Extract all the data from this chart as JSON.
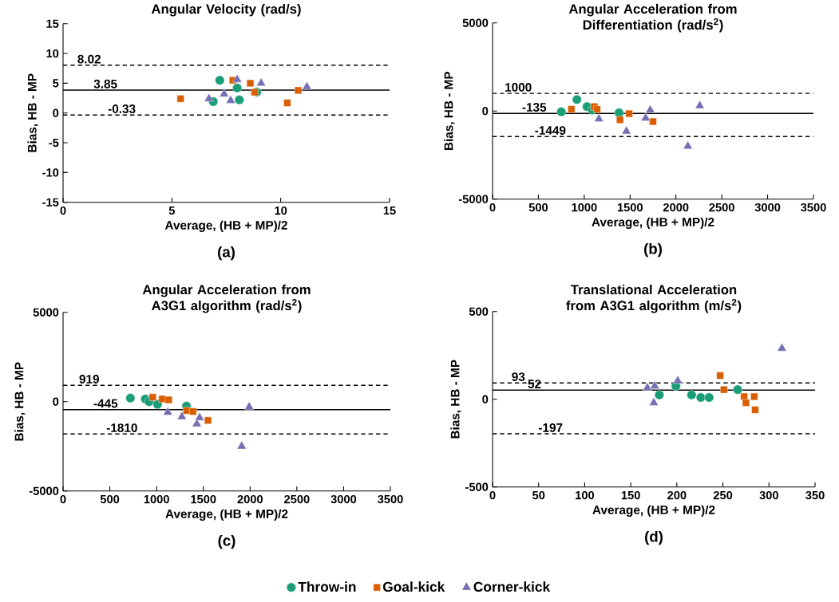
{
  "chart_data": [
    {
      "type": "scatter",
      "title": "Angular Velocity (rad/s)",
      "xlabel": "Average, (HB + MP)/2",
      "ylabel": "Bias, HB - MP",
      "annotations": [
        "(a)"
      ],
      "xlim": [
        0,
        15
      ],
      "ylim": [
        -15,
        15
      ],
      "xticks": [
        0,
        5,
        10,
        15
      ],
      "yticks": [
        -15,
        -10,
        -5,
        0,
        5,
        10,
        15
      ],
      "series": [
        {
          "color": "#1b9e77",
          "marker": "circle",
          "x": [
            7.2,
            6.9,
            8.0,
            8.1,
            8.9
          ],
          "values": [
            5.5,
            1.9,
            4.2,
            2.2,
            3.5
          ]
        },
        {
          "color": "#d95f02",
          "marker": "square",
          "x": [
            5.4,
            7.8,
            8.6,
            8.8,
            10.3,
            10.8
          ],
          "values": [
            2.4,
            5.5,
            5.0,
            3.5,
            1.7,
            3.8
          ]
        },
        {
          "color": "#7570b3",
          "marker": "triangle",
          "x": [
            6.7,
            7.4,
            7.7,
            8.0,
            9.1,
            11.2
          ],
          "values": [
            2.4,
            3.2,
            2.1,
            5.6,
            5.0,
            4.4
          ]
        }
      ],
      "ref_lines": [
        {
          "axis": "y",
          "value": 8.02,
          "label": "8.02",
          "line_style": "dashed",
          "color": "#000000"
        },
        {
          "axis": "y",
          "value": 3.85,
          "label": "3.85",
          "line_style": "solid",
          "color": "#000000"
        },
        {
          "axis": "y",
          "value": -0.33,
          "label": "-0.33",
          "line_style": "dashed",
          "color": "#000000"
        }
      ]
    },
    {
      "type": "scatter",
      "title": "Angular Acceleration from Differentiation (rad/s$^{2}$)",
      "xlabel": "Average, (HB + MP)/2",
      "ylabel": "Bias, HB - MP",
      "annotations": [
        "(b)"
      ],
      "xlim": [
        0,
        3500
      ],
      "ylim": [
        -5000,
        5000
      ],
      "xticks": [
        0,
        500,
        1000,
        1500,
        2000,
        2500,
        3000,
        3500
      ],
      "yticks": [
        -5000,
        0,
        5000
      ],
      "series": [
        {
          "color": "#1b9e77",
          "marker": "circle",
          "x": [
            750,
            920,
            1030,
            1090,
            1380
          ],
          "values": [
            -50,
            650,
            250,
            50,
            -100
          ]
        },
        {
          "color": "#d95f02",
          "marker": "square",
          "x": [
            860,
            1110,
            1140,
            1390,
            1490,
            1750
          ],
          "values": [
            100,
            250,
            100,
            -500,
            -150,
            -600
          ]
        },
        {
          "color": "#7570b3",
          "marker": "triangle",
          "x": [
            1160,
            1460,
            1670,
            1720,
            2130,
            2260
          ],
          "values": [
            -450,
            -1150,
            -400,
            50,
            -2000,
            300
          ]
        }
      ],
      "ref_lines": [
        {
          "axis": "y",
          "value": 1000,
          "label": "1000",
          "line_style": "dashed",
          "color": "#000000"
        },
        {
          "axis": "y",
          "value": -135,
          "label": "-135",
          "line_style": "solid",
          "color": "#000000"
        },
        {
          "axis": "y",
          "value": -1449,
          "label": "-1449",
          "line_style": "dashed",
          "color": "#000000"
        }
      ]
    },
    {
      "type": "scatter",
      "title": "Angular Acceleration from A3G1 algorithm (rad/s$^{2}$)",
      "xlabel": "Average, (HB + MP)/2",
      "ylabel": "Bias, HB - MP",
      "annotations": [
        "(c)"
      ],
      "xlim": [
        0,
        3500
      ],
      "ylim": [
        -5000,
        5000
      ],
      "xticks": [
        0,
        500,
        1000,
        1500,
        2000,
        2500,
        3000,
        3500
      ],
      "yticks": [
        -5000,
        0,
        5000
      ],
      "legend": "bottom",
      "series": [
        {
          "name": "Throw-in",
          "color": "#1b9e77",
          "marker": "circle",
          "x": [
            720,
            880,
            920,
            1010,
            1320
          ],
          "values": [
            200,
            150,
            0,
            -150,
            -250
          ]
        },
        {
          "name": "Goal-kick",
          "color": "#d95f02",
          "marker": "square",
          "x": [
            960,
            1060,
            1130,
            1320,
            1390,
            1550
          ],
          "values": [
            250,
            150,
            100,
            -500,
            -550,
            -1050
          ]
        },
        {
          "name": "Corner-kick",
          "color": "#7570b3",
          "marker": "triangle",
          "x": [
            1120,
            1270,
            1430,
            1460,
            1910,
            1990
          ],
          "values": [
            -600,
            -850,
            -1250,
            -900,
            -2500,
            -300
          ]
        }
      ],
      "ref_lines": [
        {
          "axis": "y",
          "value": 919,
          "label": "919",
          "line_style": "dashed",
          "color": "#000000"
        },
        {
          "axis": "y",
          "value": -445,
          "label": "-445",
          "line_style": "solid",
          "color": "#000000"
        },
        {
          "axis": "y",
          "value": -1810,
          "label": "-1810",
          "line_style": "dashed",
          "color": "#000000"
        }
      ]
    },
    {
      "type": "scatter",
      "title": "Translational Acceleration from A3G1 algorithm (m/s$^{2}$)",
      "xlabel": "Average, (HB + MP)/2",
      "ylabel": "Bias, HB - MP",
      "annotations": [
        "(d)"
      ],
      "xlim": [
        0,
        350
      ],
      "ylim": [
        -500,
        500
      ],
      "xticks": [
        0,
        50,
        100,
        150,
        200,
        250,
        300,
        350
      ],
      "yticks": [
        -500,
        0,
        500
      ],
      "series": [
        {
          "color": "#1b9e77",
          "marker": "circle",
          "x": [
            181,
            199,
            216,
            226,
            235,
            266
          ],
          "values": [
            25,
            75,
            25,
            10,
            10,
            55
          ]
        },
        {
          "color": "#d95f02",
          "marker": "square",
          "x": [
            247,
            251,
            273,
            275,
            284,
            285
          ],
          "values": [
            135,
            55,
            15,
            -20,
            15,
            -60
          ]
        },
        {
          "color": "#7570b3",
          "marker": "triangle",
          "x": [
            168,
            176,
            175,
            201,
            314
          ],
          "values": [
            65,
            75,
            -20,
            105,
            290
          ]
        }
      ],
      "ref_lines": [
        {
          "axis": "y",
          "value": 93,
          "label": "93",
          "line_style": "dashed",
          "color": "#000000"
        },
        {
          "axis": "y",
          "value": 52,
          "label": "52",
          "line_style": "solid",
          "color": "#000000"
        },
        {
          "axis": "y",
          "value": -197,
          "label": "-197",
          "line_style": "dashed",
          "color": "#000000"
        }
      ]
    }
  ]
}
